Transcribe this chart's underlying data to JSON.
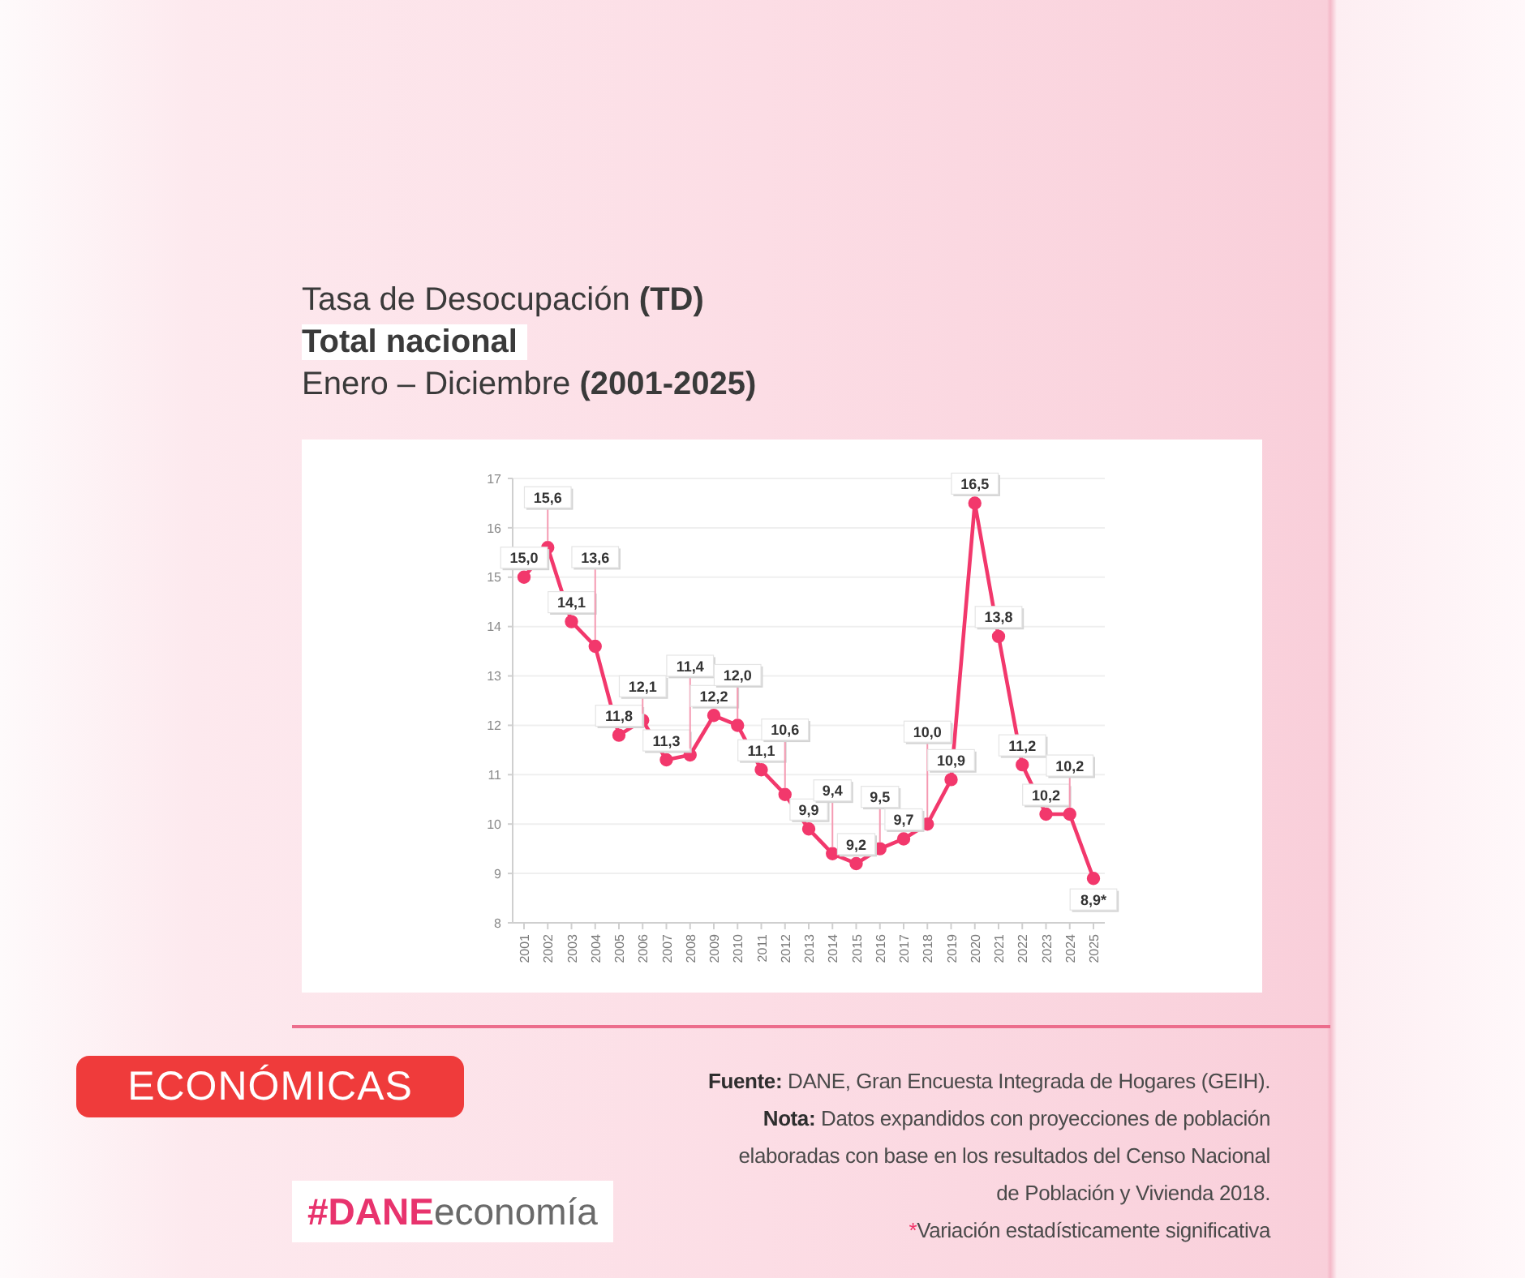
{
  "chart_data": {
    "type": "line",
    "title": "Tasa de Desocupación (TD)",
    "subtitle": "Total nacional\nEnero – Diciembre (2001-2025)",
    "categories": [
      "2001",
      "2002",
      "2003",
      "2004",
      "2005",
      "2006",
      "2007",
      "2008",
      "2009",
      "2010",
      "2011",
      "2012",
      "2013",
      "2014",
      "2015",
      "2016",
      "2017",
      "2018",
      "2019",
      "2020",
      "2021",
      "2022",
      "2023",
      "2024",
      "2025"
    ],
    "values": [
      15.0,
      15.6,
      14.1,
      13.6,
      11.8,
      12.1,
      11.3,
      11.4,
      12.2,
      12.0,
      11.1,
      10.6,
      9.9,
      9.4,
      9.2,
      9.5,
      9.7,
      10.0,
      10.9,
      16.5,
      13.8,
      11.2,
      10.2,
      10.2,
      8.9
    ],
    "value_labels": [
      "15,0",
      "15,6",
      "14,1",
      "13,6",
      "11,8",
      "12,1",
      "11,3",
      "11,4",
      "12,2",
      "12,0",
      "11,1",
      "10,6",
      "9,9",
      "9,4",
      "9,2",
      "9,5",
      "9,7",
      "10,0",
      "10,9",
      "16,5",
      "13,8",
      "11,2",
      "10,2",
      "10,2",
      "8,9*"
    ],
    "color": "#f2386c",
    "ylim": [
      8,
      17
    ],
    "yticks": [
      8,
      9,
      10,
      11,
      12,
      13,
      14,
      15,
      16,
      17
    ],
    "grid": "y",
    "marker": "circle",
    "line_style": "solid",
    "annotations": [
      "Fuente: DANE, Gran Encuesta Integrada de Hogares (GEIH).",
      "Nota: Datos expandidos con proyecciones de población elaboradas con base en los resultados del Censo Nacional de Población y Vivienda 2018.",
      "*Variación estadísticamente significativa",
      "ECONÓMICAS",
      "#DANEeconomía"
    ]
  }
}
